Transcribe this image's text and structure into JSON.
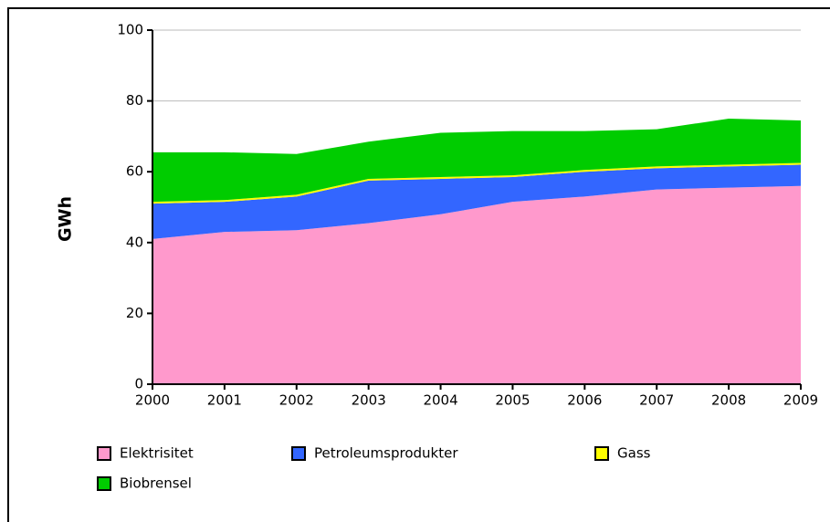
{
  "chart_data": {
    "type": "stacked_area",
    "y_label": "GWh",
    "categories": [
      "2000",
      "2001",
      "2002",
      "2003",
      "2004",
      "2005",
      "2006",
      "2007",
      "2008",
      "2009"
    ],
    "series": [
      {
        "name": "Elektrisitet",
        "color": "#ff99cc",
        "values": [
          41,
          43,
          43.5,
          45.5,
          48,
          51.5,
          53,
          55,
          55.5,
          56
        ]
      },
      {
        "name": "Petroleumsprodukter",
        "color": "#3366ff",
        "values": [
          10,
          8.5,
          9.5,
          12,
          10,
          7,
          7,
          6,
          6,
          6
        ]
      },
      {
        "name": "Gass",
        "color": "#ffff00",
        "values": [
          0.5,
          0.5,
          0.5,
          0.5,
          0.5,
          0.5,
          0.5,
          0.5,
          0.5,
          0.5
        ]
      },
      {
        "name": "Biobrensel",
        "color": "#00cc00",
        "values": [
          14,
          13.5,
          11.5,
          10.5,
          12.5,
          12.5,
          11,
          10.5,
          13,
          12
        ]
      }
    ],
    "ylim": [
      0,
      100
    ],
    "yticks": [
      0,
      20,
      40,
      60,
      80,
      100
    ],
    "grid": true
  }
}
